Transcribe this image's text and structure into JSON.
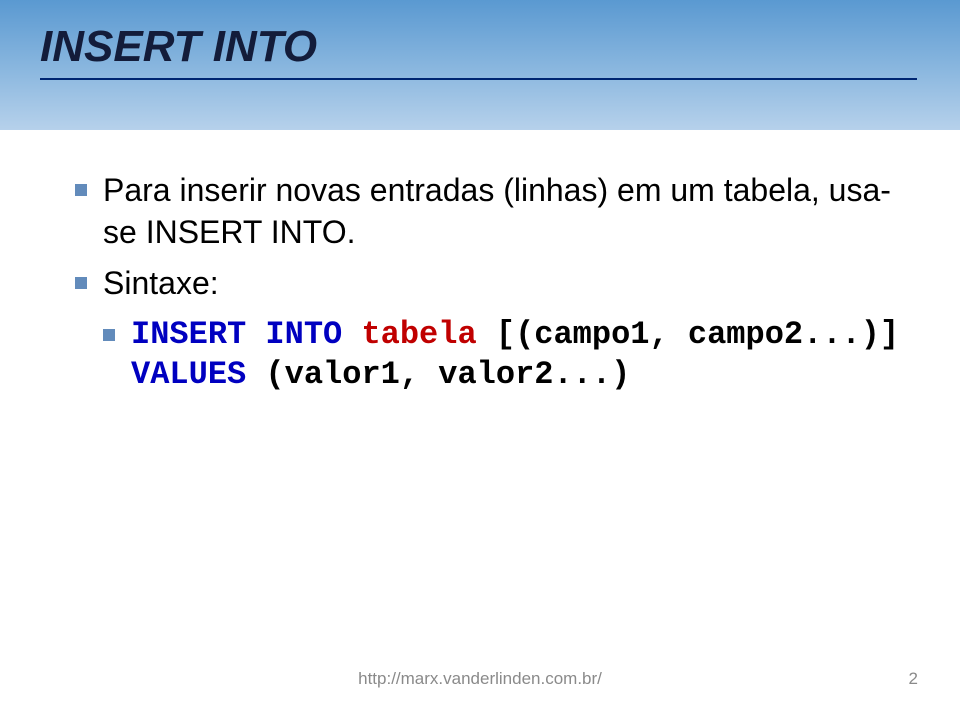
{
  "slide": {
    "title": "INSERT INTO",
    "bullets": [
      {
        "text": "Para inserir novas entradas (linhas) em um tabela, usa-se INSERT INTO."
      },
      {
        "text": "Sintaxe:"
      }
    ],
    "code": {
      "line1_kw": "INSERT INTO ",
      "line1_tbl": "tabela",
      "line1_rest": " [(campo1, campo2...)] ",
      "line1_kw2": "VALUES",
      "line1_rest2": " (valor1, valor2...)"
    },
    "footer_url": "http://marx.vanderlinden.com.br/",
    "page_number": "2"
  },
  "style": {
    "header_gradient_top": "#5a99d1",
    "header_gradient_mid": "#87b5de",
    "header_gradient_bot": "#b6d1eb",
    "title_color": "#131c3a",
    "title_underline": "#002672",
    "bullet_color": "#628bbb",
    "body_fontsize": 32,
    "title_fontsize": 44,
    "code_kw_color": "#0000c0",
    "code_tbl_color": "#c00000",
    "footer_color": "#8a8a8a",
    "footer_fontsize": 17
  }
}
